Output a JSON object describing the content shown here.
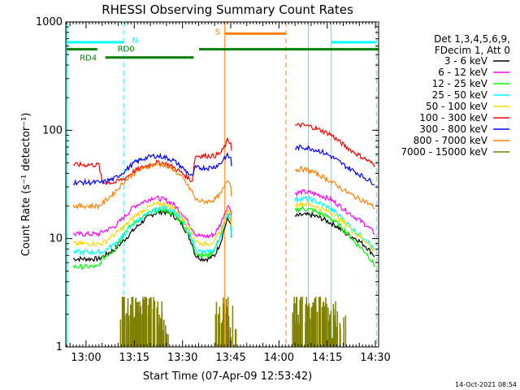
{
  "chart_data": {
    "type": "line",
    "title": "RHESSI Observing Summary Count Rates",
    "xlabel": "Start Time (07-Apr-09 12:53:42)",
    "ylabel": "Count Rate (s⁻¹ detector⁻¹)",
    "yscale": "log",
    "ylim": [
      1,
      1000
    ],
    "xlim": [
      "12:53:42",
      "14:31:00"
    ],
    "x_ticks": [
      "13:00",
      "13:15",
      "13:30",
      "13:45",
      "14:00",
      "14:15",
      "14:30"
    ],
    "y_ticks": [
      "1",
      "10",
      "100",
      "1000"
    ],
    "legend_position": "right",
    "legend_header": [
      "Det 1,3,4,5,6,9,",
      "FDecim 1, Att 0"
    ],
    "footer_date": "14-Oct-2021 08:54",
    "series": [
      {
        "name": "3 - 6 keV",
        "color": "#000000",
        "x": [
          "12:56",
          "12:57",
          "13:00",
          "13:04",
          "13:05",
          "13:09",
          "13:12",
          "13:15",
          "13:18",
          "13:21",
          "13:24",
          "13:27",
          "13:30",
          "13:33",
          "13:34",
          "13:36",
          "13:38",
          "13:40",
          "13:42",
          "13:43",
          "13:44",
          "13:45",
          "13:45:30",
          "14:05",
          "14:07",
          "14:10",
          "14:13",
          "14:16",
          "14:18",
          "14:21",
          "14:24",
          "14:27",
          "14:30"
        ],
        "y": [
          6.5,
          6.5,
          6.5,
          6.5,
          6.8,
          8,
          9.8,
          12.2,
          14.8,
          17,
          17.8,
          16.5,
          13.5,
          9,
          7,
          6.5,
          6.5,
          7,
          9.5,
          12.5,
          15,
          14,
          7,
          16,
          16.5,
          16.5,
          15.5,
          14,
          13,
          11,
          10,
          8.5,
          6.8
        ]
      },
      {
        "name": "6 - 12 keV",
        "color": "#ff00ff",
        "x": [
          "12:56",
          "12:57",
          "13:00",
          "13:04",
          "13:05",
          "13:09",
          "13:12",
          "13:15",
          "13:18",
          "13:21",
          "13:24",
          "13:27",
          "13:30",
          "13:33",
          "13:34",
          "13:36",
          "13:38",
          "13:40",
          "13:42",
          "13:43",
          "13:44",
          "13:45",
          "13:45:30",
          "14:05",
          "14:07",
          "14:10",
          "14:13",
          "14:16",
          "14:18",
          "14:21",
          "14:24",
          "14:27",
          "14:30"
        ],
        "y": [
          11,
          11,
          11,
          11,
          11.5,
          13,
          16,
          20,
          22,
          24,
          23,
          21,
          17,
          12.5,
          11,
          10.5,
          10.5,
          11,
          14,
          17,
          20,
          19,
          11,
          26,
          27,
          26.5,
          25,
          23,
          21,
          18,
          15.5,
          13.5,
          11
        ]
      },
      {
        "name": "12 - 25 keV",
        "color": "#00ff00",
        "x": [
          "12:56",
          "12:57",
          "13:00",
          "13:04",
          "13:05",
          "13:09",
          "13:12",
          "13:15",
          "13:18",
          "13:21",
          "13:24",
          "13:27",
          "13:30",
          "13:33",
          "13:34",
          "13:36",
          "13:38",
          "13:40",
          "13:42",
          "13:43",
          "13:44",
          "13:45",
          "13:45:30",
          "14:05",
          "14:07",
          "14:10",
          "14:13",
          "14:16",
          "14:18",
          "14:21",
          "14:24",
          "14:27",
          "14:30"
        ],
        "y": [
          5.5,
          5.5,
          5.5,
          5.5,
          6.5,
          8,
          11.5,
          14,
          16,
          18,
          18.5,
          17,
          14,
          9.5,
          7.5,
          7,
          7,
          8,
          11,
          14,
          17,
          16,
          8,
          18,
          19,
          18.5,
          17,
          15.5,
          14,
          11.5,
          9,
          7.5,
          5.5
        ]
      },
      {
        "name": "25 - 50 keV",
        "color": "#00ffff",
        "x": [
          "12:56",
          "12:57",
          "13:00",
          "13:04",
          "13:05",
          "13:09",
          "13:12",
          "13:15",
          "13:18",
          "13:21",
          "13:24",
          "13:27",
          "13:30",
          "13:33",
          "13:34",
          "13:36",
          "13:38",
          "13:40",
          "13:42",
          "13:43",
          "13:44",
          "13:45",
          "13:45:30",
          "14:05",
          "14:07",
          "14:10",
          "14:13",
          "14:16",
          "14:18",
          "14:21",
          "14:24",
          "14:27",
          "14:30"
        ],
        "y": [
          7.5,
          7.5,
          7.5,
          7.5,
          7.5,
          9,
          11,
          14,
          16,
          18,
          19.5,
          18.5,
          15,
          10,
          8,
          7.5,
          7.5,
          8,
          11,
          14,
          17,
          15,
          8,
          23,
          23.5,
          23,
          21,
          19,
          17,
          14,
          11.5,
          10,
          7.5
        ]
      },
      {
        "name": "50 - 100 keV",
        "color": "#ffd700",
        "x": [
          "12:56",
          "12:57",
          "13:00",
          "13:04",
          "13:05",
          "13:09",
          "13:12",
          "13:15",
          "13:18",
          "13:21",
          "13:24",
          "13:27",
          "13:30",
          "13:33",
          "13:34",
          "13:36",
          "13:38",
          "13:40",
          "13:42",
          "13:43",
          "13:44",
          "13:45",
          "13:45:30",
          "14:05",
          "14:07",
          "14:10",
          "14:13",
          "14:16",
          "14:18",
          "14:21",
          "14:24",
          "14:27",
          "14:30"
        ],
        "y": [
          9,
          9,
          9,
          9,
          9,
          11,
          13,
          16,
          18.5,
          20.5,
          21,
          19.5,
          15.5,
          11.5,
          9.5,
          9,
          9,
          9.5,
          12,
          15,
          18,
          17,
          9,
          20.5,
          21,
          20.5,
          19,
          17.5,
          16,
          13.5,
          11,
          9.5,
          7.5
        ]
      },
      {
        "name": "100 - 300 keV",
        "color": "#ff0000",
        "x": [
          "12:56",
          "12:57",
          "13:00",
          "13:04",
          "13:05",
          "13:09",
          "13:12",
          "13:15",
          "13:18",
          "13:21",
          "13:24",
          "13:27",
          "13:30",
          "13:33",
          "13:34",
          "13:36",
          "13:38",
          "13:40",
          "13:42",
          "13:43",
          "13:44",
          "13:45",
          "13:45:30",
          "14:05",
          "14:07",
          "14:10",
          "14:13",
          "14:16",
          "14:18",
          "14:21",
          "14:24",
          "14:27",
          "14:30"
        ],
        "y": [
          48,
          48,
          48,
          48,
          33,
          33,
          36,
          42,
          46,
          50,
          50,
          46,
          40,
          34,
          58,
          58,
          58,
          58,
          62,
          70,
          80,
          77,
          60,
          110,
          112,
          108,
          100,
          92,
          82,
          70,
          61,
          54,
          47
        ]
      },
      {
        "name": "300 - 800 keV",
        "color": "#0000ff",
        "x": [
          "12:56",
          "12:57",
          "13:00",
          "13:04",
          "13:05",
          "13:09",
          "13:12",
          "13:15",
          "13:18",
          "13:21",
          "13:24",
          "13:27",
          "13:30",
          "13:33",
          "13:34",
          "13:36",
          "13:38",
          "13:40",
          "13:42",
          "13:43",
          "13:44",
          "13:45",
          "13:45:30",
          "14:05",
          "14:07",
          "14:10",
          "14:13",
          "14:16",
          "14:18",
          "14:21",
          "14:24",
          "14:27",
          "14:30"
        ],
        "y": [
          33,
          33,
          33,
          33,
          33,
          36,
          42,
          50,
          55,
          58,
          57,
          53,
          45,
          37,
          45,
          45,
          45,
          46,
          50,
          56,
          58,
          55,
          40,
          68,
          70,
          68,
          64,
          58,
          53,
          46,
          41,
          36,
          32
        ]
      },
      {
        "name": "800 - 7000 keV",
        "color": "#ff8000",
        "x": [
          "12:56",
          "12:57",
          "13:00",
          "13:04",
          "13:05",
          "13:09",
          "13:12",
          "13:15",
          "13:18",
          "13:21",
          "13:24",
          "13:27",
          "13:30",
          "13:33",
          "13:34",
          "13:36",
          "13:38",
          "13:40",
          "13:42",
          "13:43",
          "13:44",
          "13:45",
          "13:45:30",
          "14:05",
          "14:07",
          "14:10",
          "14:13",
          "14:16",
          "14:18",
          "14:21",
          "14:24",
          "14:27",
          "14:30"
        ],
        "y": [
          20,
          20,
          20,
          20,
          21,
          27,
          34,
          40,
          45,
          48,
          48,
          44,
          36,
          27,
          23,
          22,
          22,
          23,
          26,
          30,
          35,
          32,
          20,
          43,
          44,
          42,
          38,
          34,
          31,
          27,
          24,
          22,
          19
        ]
      },
      {
        "name": "7000 - 15000 keV",
        "color": "#808000",
        "x": [
          "13:12",
          "13:13",
          "13:14",
          "13:15",
          "13:16",
          "13:17",
          "13:18",
          "13:19",
          "13:20",
          "13:21",
          "13:22",
          "13:23",
          "13:24",
          "13:42",
          "13:43",
          "13:44",
          "13:45",
          "14:05",
          "14:06",
          "14:07",
          "14:08",
          "14:09",
          "14:10",
          "14:11",
          "14:12",
          "14:13",
          "14:14",
          "14:15",
          "14:16",
          "14:17",
          "14:18",
          "14:19"
        ],
        "y": [
          1.8,
          2.7,
          1.8,
          2.7,
          1.8,
          2.7,
          2.3,
          2.7,
          1.8,
          2.7,
          2.3,
          1.8,
          1.4,
          2.3,
          1.8,
          2.7,
          1.4,
          2.3,
          2.7,
          1.8,
          2.7,
          2.3,
          1.8,
          2.7,
          2.3,
          1.8,
          2.7,
          2.3,
          1.8,
          2.3,
          1.4,
          1.8
        ]
      }
    ],
    "vertical_markers": [
      {
        "time": "12:54:00",
        "color": "#00ffff",
        "style": "solid"
      },
      {
        "time": "13:11:40",
        "color": "#00ffff",
        "style": "dashed"
      },
      {
        "time": "13:43:10",
        "color": "#ff8000",
        "style": "solid"
      },
      {
        "time": "14:02:10",
        "color": "#ff8000",
        "style": "dashed"
      },
      {
        "time": "14:09:10",
        "color": "#00ffff",
        "style": "solid"
      },
      {
        "time": "14:16:15",
        "color": "#00ffff",
        "style": "solid"
      },
      {
        "time": "14:30:20",
        "color": "#00ffff",
        "style": "dashed"
      }
    ],
    "flag_bars": [
      {
        "label": "N",
        "color": "#00ffff",
        "y": 650,
        "segments": [
          [
            "12:54:00",
            "13:11:40"
          ],
          [
            "14:16:15",
            "14:30:20"
          ]
        ]
      },
      {
        "label": "S",
        "color": "#ff8000",
        "y": 780,
        "segments": [
          [
            "13:43:10",
            "14:02:10"
          ]
        ]
      },
      {
        "label": "RD0",
        "color": "#008000",
        "y": 560,
        "segments": [
          [
            "12:54:00",
            "13:03:30"
          ],
          [
            "13:35:10",
            "14:31:00"
          ]
        ]
      },
      {
        "label": "RD4",
        "color": "#008000",
        "y": 470,
        "segments": [
          [
            "13:06:00",
            "13:33:30"
          ]
        ]
      }
    ]
  }
}
